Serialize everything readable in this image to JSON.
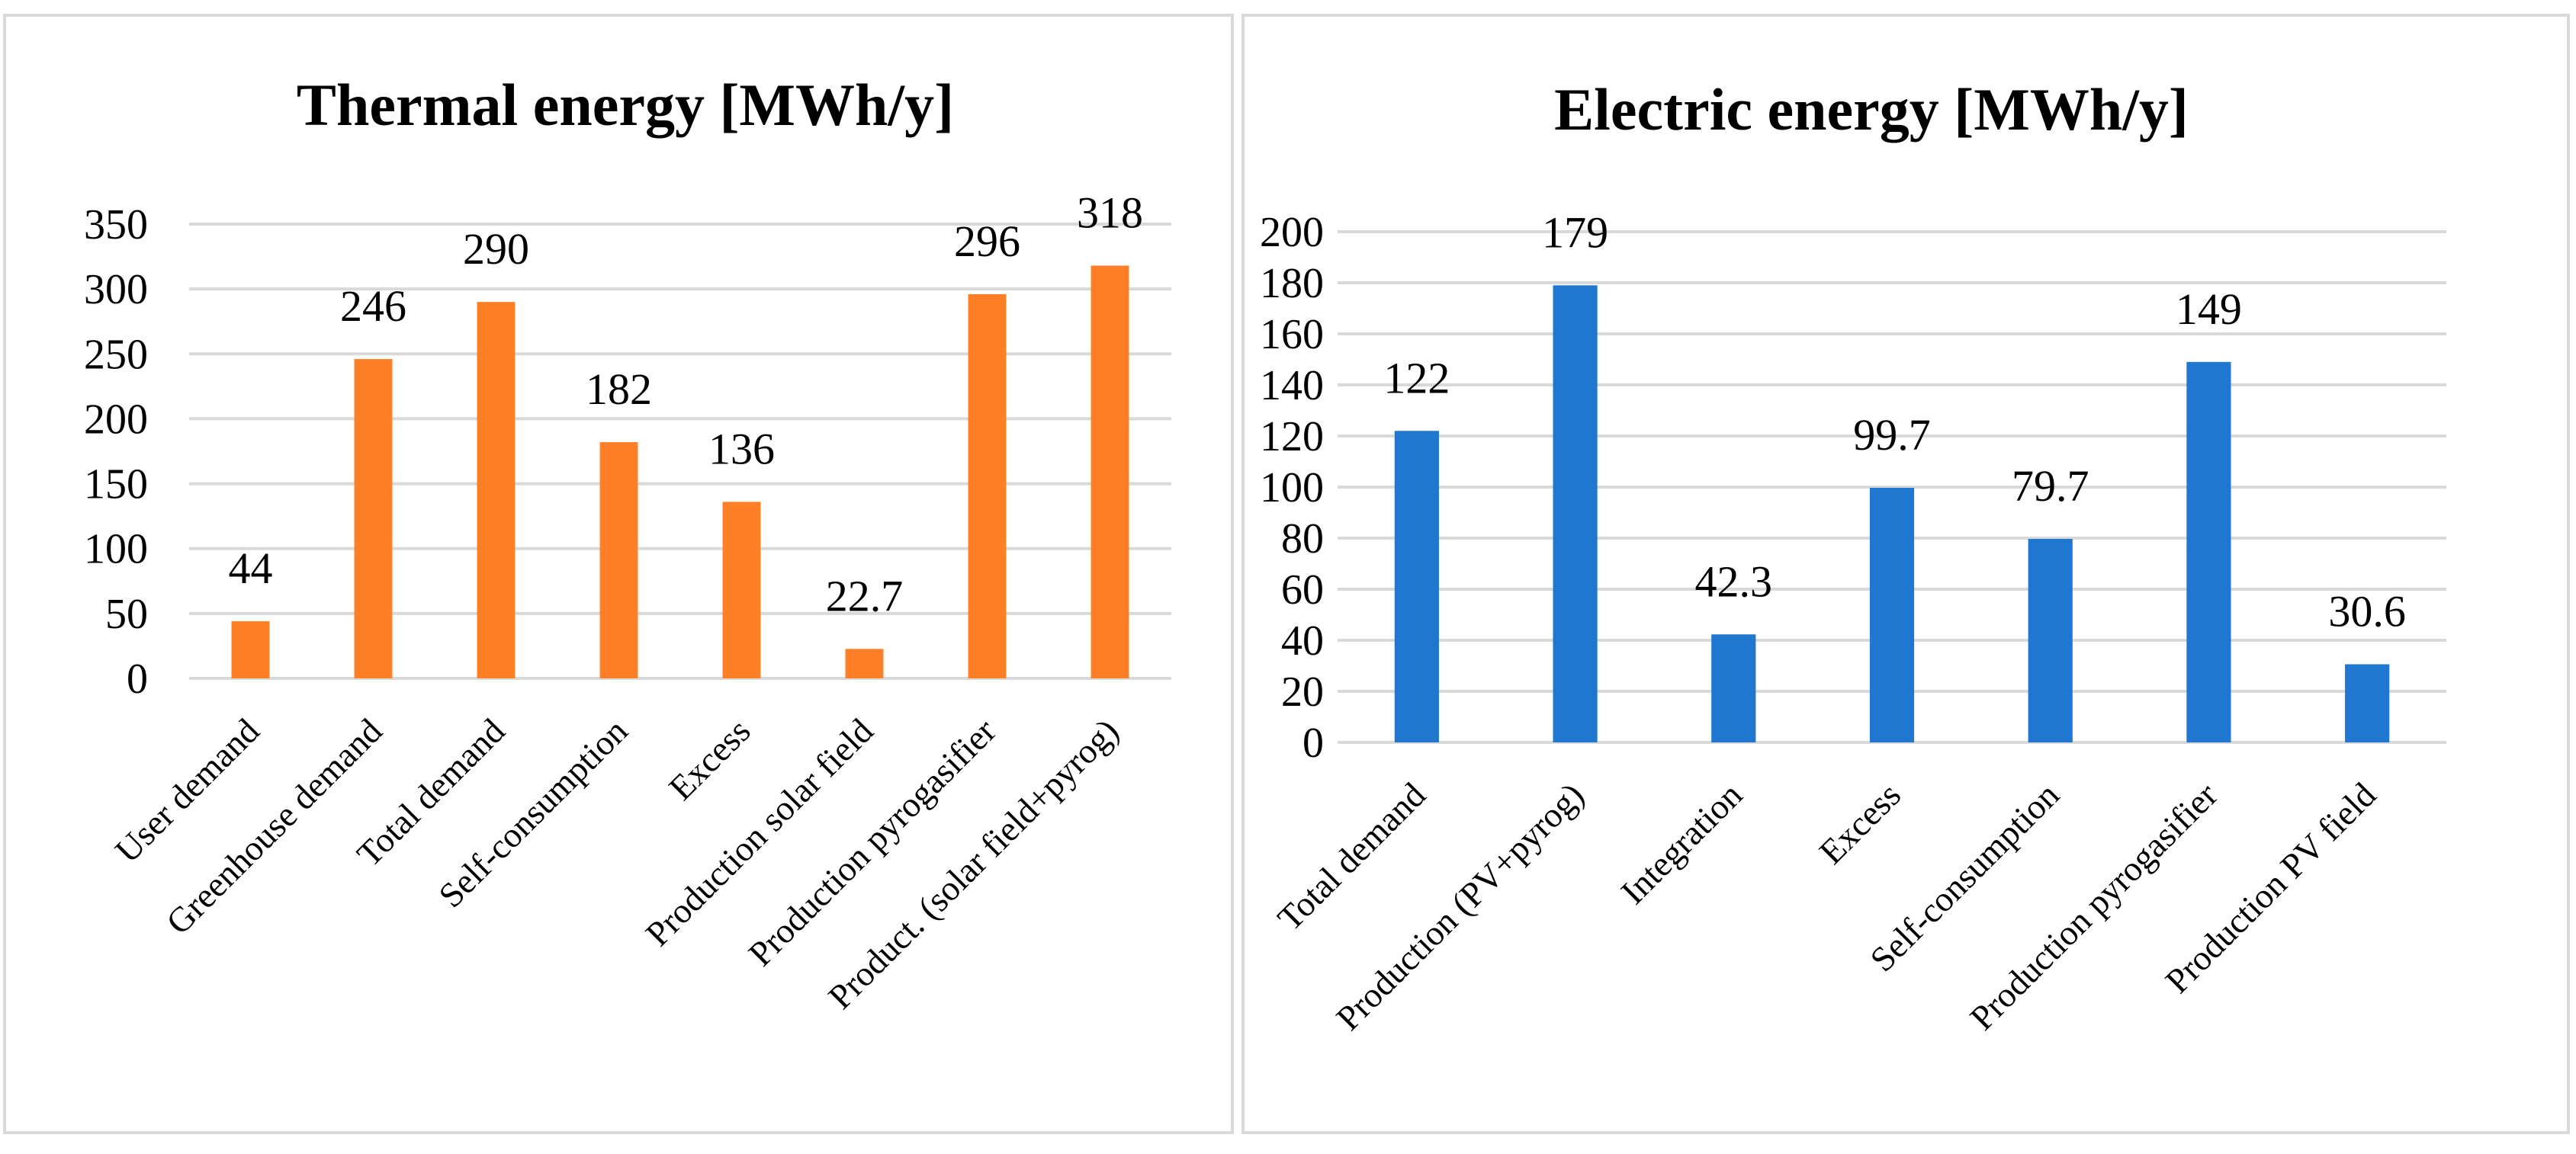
{
  "chart_data": [
    {
      "type": "bar",
      "title": "Thermal energy [MWh/y]",
      "xlabel": "",
      "ylabel": "",
      "ylim": [
        0,
        350
      ],
      "yticks": [
        0,
        50,
        100,
        150,
        200,
        250,
        300,
        350
      ],
      "grid": true,
      "legend": "none",
      "color": "#ff7f27",
      "categories": [
        "User  demand",
        "Greenhouse  demand",
        "Total  demand",
        "Self-consumption",
        "Excess",
        "Production solar field",
        "Production pyrogasifier",
        "Product. (solar field+pyrog)"
      ],
      "values": [
        44,
        246,
        290,
        182,
        136,
        22.7,
        296,
        318
      ],
      "data_labels": [
        "44",
        "246",
        "290",
        "182",
        "136",
        "22.7",
        "296",
        "318"
      ]
    },
    {
      "type": "bar",
      "title": "Electric energy [MWh/y]",
      "xlabel": "",
      "ylabel": "",
      "ylim": [
        0,
        200
      ],
      "yticks": [
        0,
        20,
        40,
        60,
        80,
        100,
        120,
        140,
        160,
        180,
        200
      ],
      "grid": true,
      "legend": "none",
      "color": "#1f77d0",
      "categories": [
        "Total  demand",
        "Production (PV+pyrog)",
        "Integration",
        "Excess",
        "Self-consumption",
        "Production pyrogasifier",
        "Production PV field"
      ],
      "values": [
        122,
        179,
        42.3,
        99.7,
        79.7,
        149,
        30.6
      ],
      "data_labels": [
        "122",
        "179",
        "42.3",
        "99.7",
        "79.7",
        "149",
        "30.6"
      ]
    }
  ]
}
